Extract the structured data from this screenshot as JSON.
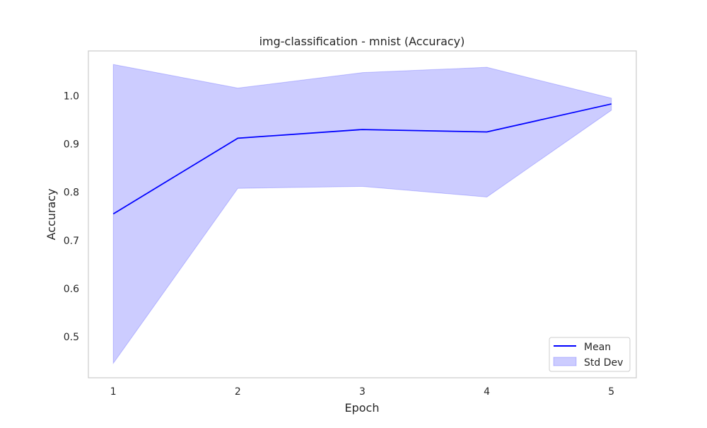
{
  "chart_data": {
    "type": "line",
    "title": "img-classification - mnist (Accuracy)",
    "xlabel": "Epoch",
    "ylabel": "Accuracy",
    "x": [
      1,
      2,
      3,
      4,
      5
    ],
    "x_ticks": [
      "1",
      "2",
      "3",
      "4",
      "5"
    ],
    "y_ticks": [
      "0.5",
      "0.6",
      "0.7",
      "0.8",
      "0.9",
      "1.0"
    ],
    "xlim": [
      0.8,
      5.2
    ],
    "ylim": [
      0.415,
      1.093
    ],
    "grid": false,
    "legend_position": "lower-right",
    "series": [
      {
        "name": "Mean",
        "kind": "line",
        "color": "#0000ff",
        "values": [
          0.755,
          0.912,
          0.93,
          0.925,
          0.983
        ]
      },
      {
        "name": "Std Dev",
        "kind": "band",
        "color": "#0000ff",
        "upper": [
          1.065,
          1.016,
          1.048,
          1.059,
          0.995
        ],
        "lower": [
          0.445,
          0.808,
          0.812,
          0.79,
          0.97
        ]
      }
    ]
  }
}
